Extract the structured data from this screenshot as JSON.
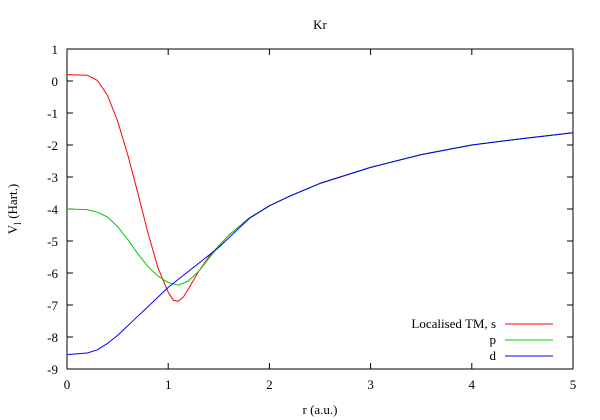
{
  "chart_data": {
    "type": "line",
    "title": "Kr",
    "xlabel": "r (a.u.)",
    "ylabel_main": "V",
    "ylabel_sub": "l",
    "ylabel_unit": " (Hart.)",
    "xlim": [
      0,
      5
    ],
    "ylim": [
      -9,
      1
    ],
    "xticks": [
      0,
      1,
      2,
      3,
      4,
      5
    ],
    "yticks": [
      -9,
      -8,
      -7,
      -6,
      -5,
      -4,
      -3,
      -2,
      -1,
      0,
      1
    ],
    "grid": false,
    "legend_position": "bottom-right",
    "series": [
      {
        "name": "Localised TM, s",
        "color": "#ff0000",
        "x": [
          0,
          0.2,
          0.3,
          0.4,
          0.5,
          0.6,
          0.7,
          0.8,
          0.9,
          1.0,
          1.05,
          1.1,
          1.15,
          1.2,
          1.3,
          1.4,
          1.5,
          1.6,
          1.7,
          1.8,
          2.0,
          2.2,
          2.5,
          3.0,
          3.5,
          4.0,
          4.5,
          5.0
        ],
        "y": [
          0.2,
          0.18,
          0.02,
          -0.45,
          -1.25,
          -2.3,
          -3.5,
          -4.75,
          -5.85,
          -6.6,
          -6.85,
          -6.88,
          -6.75,
          -6.5,
          -5.95,
          -5.5,
          -5.15,
          -4.82,
          -4.55,
          -4.28,
          -3.9,
          -3.6,
          -3.2,
          -2.7,
          -2.3,
          -2.0,
          -1.8,
          -1.62
        ]
      },
      {
        "name": "p",
        "color": "#00cc00",
        "x": [
          0,
          0.2,
          0.3,
          0.4,
          0.5,
          0.6,
          0.7,
          0.8,
          0.9,
          1.0,
          1.1,
          1.2,
          1.3,
          1.4,
          1.5,
          1.6,
          1.7,
          1.8,
          2.0,
          2.2,
          2.5,
          3.0,
          3.5,
          4.0,
          4.5,
          5.0
        ],
        "y": [
          -4.0,
          -4.02,
          -4.1,
          -4.25,
          -4.55,
          -4.95,
          -5.4,
          -5.8,
          -6.1,
          -6.3,
          -6.38,
          -6.25,
          -5.95,
          -5.55,
          -5.15,
          -4.82,
          -4.55,
          -4.28,
          -3.9,
          -3.6,
          -3.2,
          -2.7,
          -2.3,
          -2.0,
          -1.8,
          -1.62
        ]
      },
      {
        "name": "d",
        "color": "#0000ff",
        "x": [
          0,
          0.2,
          0.3,
          0.4,
          0.5,
          0.6,
          0.7,
          0.8,
          0.9,
          1.0,
          1.1,
          1.2,
          1.3,
          1.4,
          1.5,
          1.6,
          1.7,
          1.8,
          2.0,
          2.2,
          2.5,
          3.0,
          3.5,
          4.0,
          4.5,
          5.0
        ],
        "y": [
          -8.55,
          -8.5,
          -8.4,
          -8.2,
          -7.95,
          -7.65,
          -7.35,
          -7.05,
          -6.75,
          -6.45,
          -6.2,
          -5.95,
          -5.7,
          -5.45,
          -5.2,
          -4.9,
          -4.6,
          -4.3,
          -3.9,
          -3.6,
          -3.2,
          -2.7,
          -2.3,
          -2.0,
          -1.8,
          -1.62
        ]
      }
    ]
  }
}
